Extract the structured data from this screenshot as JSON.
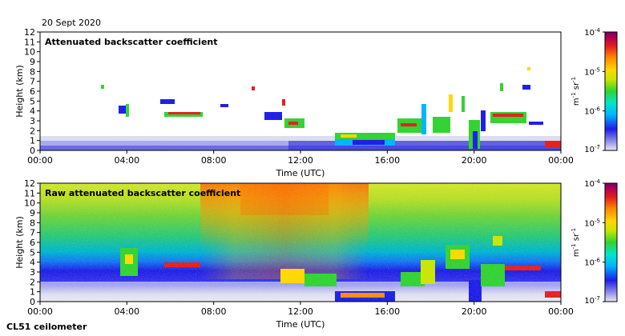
{
  "header": {
    "date": "20 Sept 2020",
    "instrument": "CL51 ceilometer"
  },
  "colorscale": {
    "colors": [
      "#e8e8f4",
      "#8c8ce8",
      "#1e1ee6",
      "#00b4ff",
      "#00e6c8",
      "#32d232",
      "#c8e600",
      "#ffd700",
      "#ff8c00",
      "#e61e1e",
      "#b40050",
      "#780064"
    ]
  },
  "chart_data": [
    {
      "type": "heatmap",
      "title": "Attenuated backscatter coefficient",
      "xlabel": "Time (UTC)",
      "ylabel": "Height (km)",
      "xlim": [
        0,
        24
      ],
      "ylim": [
        0,
        12
      ],
      "x_ticks": [
        "00:00",
        "04:00",
        "08:00",
        "12:00",
        "16:00",
        "20:00",
        "00:00"
      ],
      "y_ticks": [
        "0",
        "1",
        "2",
        "3",
        "4",
        "5",
        "6",
        "7",
        "8",
        "9",
        "10",
        "11",
        "12"
      ],
      "colorbar": {
        "label_base": "m",
        "label_exp1": "-1",
        "label_mid": " sr",
        "label_exp2": "-1",
        "scale": "log",
        "range": [
          1e-07,
          0.0001
        ],
        "ticks": [
          {
            "base": "10",
            "exp": "-4"
          },
          {
            "base": "10",
            "exp": "-5"
          },
          {
            "base": "10",
            "exp": "-6"
          },
          {
            "base": "10",
            "exp": "-7"
          }
        ]
      }
    },
    {
      "type": "heatmap",
      "title": "Raw attenuated backscatter coefficient",
      "xlabel": "Time (UTC)",
      "ylabel": "Height (km)",
      "xlim": [
        0,
        24
      ],
      "ylim": [
        0,
        12
      ],
      "x_ticks": [
        "00:00",
        "04:00",
        "08:00",
        "12:00",
        "16:00",
        "20:00",
        "00:00"
      ],
      "y_ticks": [
        "0",
        "1",
        "2",
        "3",
        "4",
        "5",
        "6",
        "7",
        "8",
        "9",
        "10",
        "11",
        "12"
      ],
      "colorbar": {
        "label_base": "m",
        "label_exp1": "-1",
        "label_mid": " sr",
        "label_exp2": "-1",
        "scale": "log",
        "range": [
          1e-07,
          0.0001
        ],
        "ticks": [
          {
            "base": "10",
            "exp": "-4"
          },
          {
            "base": "10",
            "exp": "-5"
          },
          {
            "base": "10",
            "exp": "-6"
          },
          {
            "base": "10",
            "exp": "-7"
          }
        ]
      }
    }
  ]
}
